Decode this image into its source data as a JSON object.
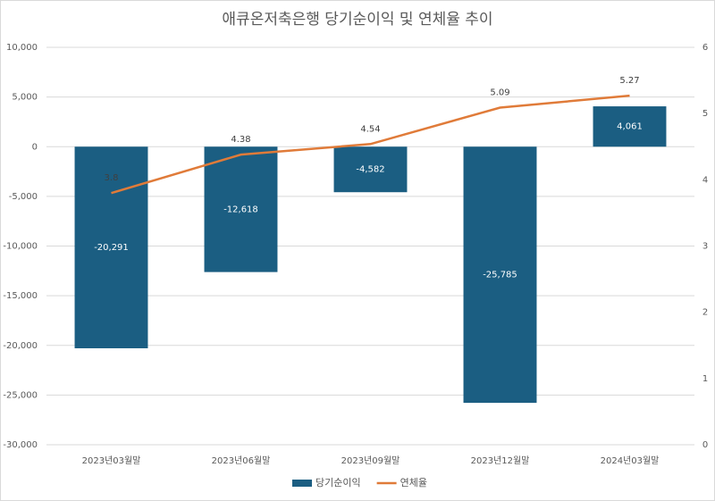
{
  "chart_data": {
    "type": "bar",
    "title": "애큐온저축은행 당기순이익 및 연체율 추이",
    "categories": [
      "2023년03월말",
      "2023년06월말",
      "2023년09월말",
      "2023년12월말",
      "2024년03월말"
    ],
    "series": [
      {
        "name": "당기순이익",
        "type": "bar",
        "color": "#1b5e82",
        "values": [
          -20291,
          -12618,
          -4582,
          -25785,
          4061
        ],
        "value_labels": [
          "-20,291",
          "-12,618",
          "-4,582",
          "-25,785",
          "4,061"
        ]
      },
      {
        "name": "연체율",
        "type": "line",
        "axis": "y2",
        "color": "#e07b39",
        "values": [
          3.8,
          4.38,
          4.54,
          5.09,
          5.27
        ]
      }
    ],
    "ylim": [
      -30000,
      10000
    ],
    "yticks": [
      {
        "value": -30000,
        "label": "-30,000"
      },
      {
        "value": -25000,
        "label": "-25,000"
      },
      {
        "value": -20000,
        "label": "-20,000"
      },
      {
        "value": -15000,
        "label": "-15,000"
      },
      {
        "value": -10000,
        "label": "-10,000"
      },
      {
        "value": -5000,
        "label": "-5,000"
      },
      0,
      {
        "value": 5000,
        "label": "5,000"
      },
      {
        "value": 10000,
        "label": "10,000"
      }
    ],
    "y2lim": [
      0,
      6
    ],
    "y2ticks": [
      0,
      1,
      2,
      3,
      4,
      5,
      6
    ],
    "grid": true,
    "legend": "bottom"
  }
}
